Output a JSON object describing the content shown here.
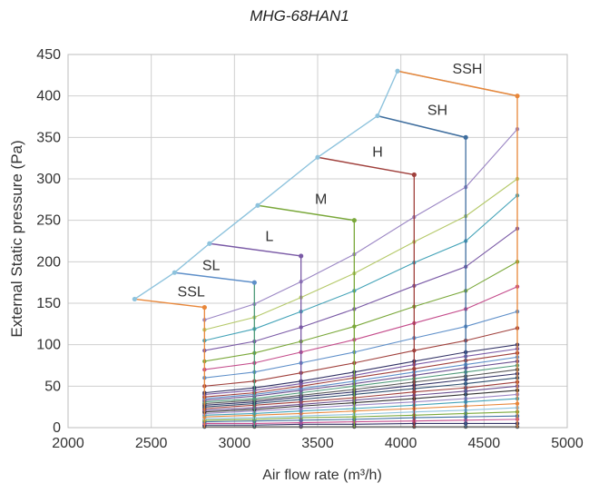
{
  "chart_data": {
    "type": "line",
    "title": "MHG-68HAN1",
    "xlabel": "Air flow rate (m³/h)",
    "ylabel": "External Static pressure (Pa)",
    "xlim": [
      2000,
      5000
    ],
    "ylim": [
      0,
      450
    ],
    "xticks": [
      "2000",
      "2500",
      "3000",
      "3500",
      "4000",
      "4500",
      "5000"
    ],
    "yticks": [
      "0",
      "50",
      "100",
      "150",
      "200",
      "250",
      "300",
      "350",
      "400",
      "450"
    ],
    "grid": true,
    "envelope": [
      {
        "name": "SSL",
        "x": [
          2400,
          2820
        ],
        "y": [
          155,
          145
        ],
        "color": "#e8873a",
        "label_x": 2740,
        "label_y": 158
      },
      {
        "name": "SL",
        "x": [
          2640,
          3120
        ],
        "y": [
          187,
          175
        ],
        "color": "#5e8fc9",
        "label_x": 2860,
        "label_y": 190
      },
      {
        "name": "L",
        "x": [
          2850,
          3400
        ],
        "y": [
          222,
          207
        ],
        "color": "#7a5aa6",
        "label_x": 3210,
        "label_y": 225
      },
      {
        "name": "M",
        "x": [
          3140,
          3720
        ],
        "y": [
          268,
          250
        ],
        "color": "#7aa83a",
        "label_x": 3520,
        "label_y": 270
      },
      {
        "name": "H",
        "x": [
          3500,
          4080
        ],
        "y": [
          326,
          305
        ],
        "color": "#a0403c",
        "label_x": 3860,
        "label_y": 327
      },
      {
        "name": "SH",
        "x": [
          3860,
          4390
        ],
        "y": [
          376,
          350
        ],
        "color": "#3f6e9e",
        "label_x": 4220,
        "label_y": 377
      },
      {
        "name": "SSH",
        "x": [
          3980,
          4700
        ],
        "y": [
          430,
          400
        ],
        "color": "#e8873a",
        "label_x": 4400,
        "label_y": 427
      }
    ],
    "outline": {
      "x": [
        2400,
        2640,
        2850,
        3140,
        3500,
        3860,
        3980,
        4700
      ],
      "y": [
        155,
        187,
        222,
        268,
        326,
        376,
        430,
        400
      ],
      "color": "#8ec3dd"
    },
    "verticals": {
      "x": [
        2820,
        3120,
        3400,
        3720,
        4080,
        4390,
        4700
      ],
      "top": [
        145,
        175,
        207,
        250,
        305,
        350,
        400
      ],
      "colors": [
        "#e8873a",
        "#4f9a7a",
        "#7a5aa6",
        "#7aa83a",
        "#a0403c",
        "#3f6e9e",
        "#e8873a"
      ]
    },
    "series": [
      {
        "y": [
          1,
          1,
          1,
          1,
          1,
          1,
          1
        ],
        "color": "#555555"
      },
      {
        "y": [
          3,
          3,
          4,
          4,
          5,
          5,
          5
        ],
        "color": "#333366"
      },
      {
        "y": [
          5,
          5,
          6,
          7,
          8,
          9,
          10
        ],
        "color": "#c44b8b"
      },
      {
        "y": [
          7,
          8,
          9,
          10,
          12,
          13,
          14
        ],
        "color": "#3f6e9e"
      },
      {
        "y": [
          9,
          10,
          12,
          13,
          15,
          17,
          19
        ],
        "color": "#7aa83a"
      },
      {
        "y": [
          11,
          12,
          14,
          16,
          19,
          21,
          24
        ],
        "color": "#8ec3dd"
      },
      {
        "y": [
          13,
          15,
          17,
          20,
          23,
          26,
          29
        ],
        "color": "#e8873a"
      },
      {
        "y": [
          15,
          17,
          20,
          23,
          27,
          31,
          35
        ],
        "color": "#44a3b8"
      },
      {
        "y": [
          17,
          20,
          23,
          27,
          31,
          35,
          40
        ],
        "color": "#9b86c4"
      },
      {
        "y": [
          19,
          22,
          26,
          30,
          35,
          40,
          45
        ],
        "color": "#333333"
      },
      {
        "y": [
          21,
          24,
          28,
          33,
          39,
          44,
          50
        ],
        "color": "#6a4f8f"
      },
      {
        "y": [
          23,
          27,
          31,
          36,
          43,
          48,
          55
        ],
        "color": "#a0403c"
      },
      {
        "y": [
          25,
          29,
          34,
          40,
          47,
          53,
          60
        ],
        "color": "#2f4f6f"
      },
      {
        "y": [
          27,
          31,
          37,
          43,
          51,
          58,
          65
        ],
        "color": "#333366"
      },
      {
        "y": [
          29,
          33,
          39,
          46,
          55,
          62,
          70
        ],
        "color": "#555555"
      },
      {
        "y": [
          31,
          35,
          42,
          50,
          59,
          67,
          75
        ],
        "color": "#4f9a7a"
      },
      {
        "y": [
          33,
          38,
          45,
          53,
          63,
          72,
          80
        ],
        "color": "#6a4f8f"
      },
      {
        "y": [
          35,
          40,
          47,
          56,
          67,
          76,
          85
        ],
        "color": "#5e8fc9"
      },
      {
        "y": [
          37,
          42,
          50,
          60,
          71,
          81,
          90
        ],
        "color": "#a0403c"
      },
      {
        "y": [
          40,
          45,
          53,
          63,
          76,
          86,
          95
        ],
        "color": "#7a5aa6"
      },
      {
        "y": [
          42,
          48,
          56,
          67,
          80,
          91,
          100
        ],
        "color": "#333366"
      },
      {
        "y": [
          50,
          56,
          66,
          78,
          93,
          105,
          120
        ],
        "color": "#a0403c"
      },
      {
        "y": [
          60,
          67,
          78,
          91,
          108,
          122,
          140
        ],
        "color": "#5e8fc9"
      },
      {
        "y": [
          70,
          78,
          91,
          106,
          126,
          143,
          170
        ],
        "color": "#c44b8b"
      },
      {
        "y": [
          80,
          90,
          104,
          122,
          146,
          165,
          200
        ],
        "color": "#7aa83a"
      },
      {
        "y": [
          93,
          104,
          121,
          143,
          171,
          194,
          240
        ],
        "color": "#7a5aa6"
      },
      {
        "y": [
          105,
          119,
          140,
          165,
          199,
          225,
          280
        ],
        "color": "#44a3b8"
      },
      {
        "y": [
          118,
          133,
          157,
          186,
          224,
          255,
          300
        ],
        "color": "#b5c96a"
      },
      {
        "y": [
          130,
          149,
          176,
          209,
          254,
          290,
          360
        ],
        "color": "#9b86c4"
      }
    ]
  }
}
